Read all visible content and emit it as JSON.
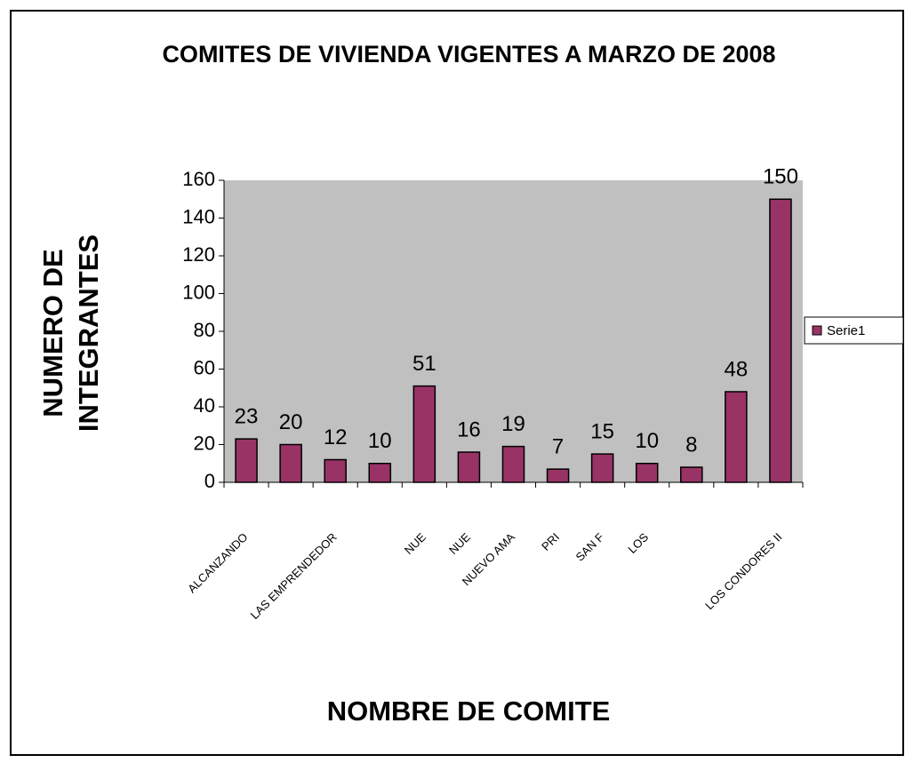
{
  "chart_data": {
    "type": "bar",
    "title": "COMITES DE VIVIENDA VIGENTES A MARZO DE 2008",
    "y_label": "NUMERO DE INTEGRANTES",
    "x_label": "NOMBRE DE COMITE",
    "categories": [
      "ALCANZANDO",
      null,
      "LAS EMPRENDEDOR",
      null,
      "NUE",
      "NUE",
      "NUEVO AMA",
      "PRI",
      "SAN F",
      "LOS",
      null,
      null,
      "LOS CONDORES II"
    ],
    "series": [
      {
        "name": "Serie1",
        "color": "#993366",
        "values": [
          23,
          20,
          12,
          10,
          51,
          16,
          19,
          7,
          15,
          10,
          8,
          48,
          150
        ]
      }
    ],
    "ylim": [
      0,
      160
    ],
    "yticks": [
      0,
      20,
      40,
      60,
      80,
      100,
      120,
      140,
      160
    ],
    "plot_background": "#c0c0c0",
    "legend": "right",
    "data_labels": true
  }
}
